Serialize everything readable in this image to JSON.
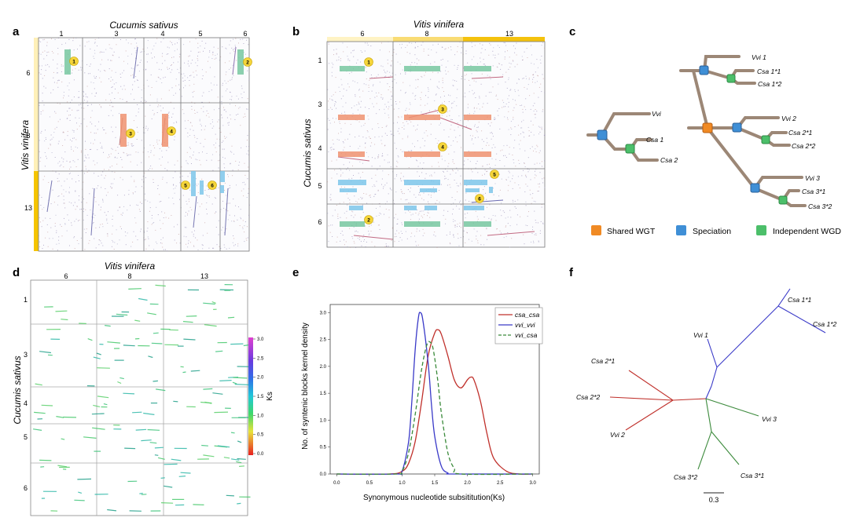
{
  "panels": {
    "a": {
      "letter": "a",
      "x_title": "Cucumis sativus",
      "y_title": "Vitis vinifera",
      "col_labels": [
        "1",
        "3",
        "4",
        "5",
        "6"
      ],
      "row_labels": [
        "6",
        "8",
        "13"
      ],
      "markers": [
        "1",
        "2",
        "3",
        "4",
        "5",
        "6"
      ]
    },
    "b": {
      "letter": "b",
      "x_title": "Vitis vinifera",
      "y_title": "Cucumis sativus",
      "col_labels": [
        "6",
        "8",
        "13"
      ],
      "row_labels": [
        "1",
        "3",
        "4",
        "5",
        "6"
      ],
      "markers": [
        "1",
        "2",
        "3",
        "4",
        "5",
        "6"
      ]
    },
    "c": {
      "letter": "c",
      "small_tree": [
        "Vvi",
        "Csa 1",
        "Csa 2"
      ],
      "big_tree": [
        "Vvi 1",
        "Csa 1*1",
        "Csa 1*2",
        "Vvi 2",
        "Csa 2*1",
        "Csa 2*2",
        "Vvi 3",
        "Csa 3*1",
        "Csa 3*2"
      ],
      "legend": [
        {
          "label": "Shared WGT",
          "color": "#f08a24"
        },
        {
          "label": "Speciation",
          "color": "#3f8fd6"
        },
        {
          "label": "Independent WGD",
          "color": "#4cbf6a"
        }
      ]
    },
    "d": {
      "letter": "d",
      "x_title": "Vitis vinifera",
      "y_title": "Cucumis sativus",
      "col_labels": [
        "6",
        "8",
        "13"
      ],
      "row_labels": [
        "1",
        "3",
        "4",
        "5",
        "6"
      ],
      "colorbar_title": "Ks",
      "colorbar_ticks": [
        "3.0",
        "2.5",
        "2.0",
        "1.5",
        "1.0",
        "0.5",
        "0.0"
      ]
    },
    "e": {
      "letter": "e"
    },
    "f": {
      "letter": "f",
      "labels": [
        "Csa 1*1",
        "Csa 1*2",
        "Vvi 1",
        "Csa 2*1",
        "Csa 2*2",
        "Vvi 2",
        "Vvi 3",
        "Csa 3*2",
        "Csa 3*1"
      ],
      "scale": "0.3"
    }
  },
  "chart_data": {
    "type": "line",
    "title": "",
    "xlabel": "Synonymous nucleotide subsititution(Ks)",
    "ylabel": "No. of syntenic blocks kernel density",
    "xlim": [
      -0.1,
      3.1
    ],
    "ylim": [
      0,
      3.15
    ],
    "x_ticks": [
      "0.0",
      "0.5",
      "1.0",
      "1.5",
      "2.0",
      "2.5",
      "3.0"
    ],
    "y_ticks": [
      "0.0",
      "0.5",
      "1.0",
      "1.5",
      "2.0",
      "2.5",
      "3.0"
    ],
    "legend_position": "top-right",
    "series": [
      {
        "name": "csa_csa",
        "color": "#c0302b",
        "dash": "solid",
        "x": [
          0,
          0.8,
          1.0,
          1.1,
          1.2,
          1.3,
          1.4,
          1.5,
          1.55,
          1.6,
          1.7,
          1.8,
          1.9,
          2.0,
          2.05,
          2.1,
          2.2,
          2.3,
          2.4,
          2.6,
          2.8,
          3.0
        ],
        "y": [
          0,
          0,
          0.05,
          0.2,
          0.6,
          1.35,
          2.2,
          2.62,
          2.68,
          2.6,
          2.2,
          1.75,
          1.6,
          1.75,
          1.8,
          1.75,
          1.35,
          0.75,
          0.3,
          0.05,
          0,
          0
        ]
      },
      {
        "name": "vvi_vvi",
        "color": "#3a3ac8",
        "dash": "solid",
        "x": [
          0,
          0.9,
          1.0,
          1.1,
          1.15,
          1.2,
          1.25,
          1.28,
          1.32,
          1.4,
          1.45,
          1.5,
          1.6,
          1.7,
          1.8,
          3.0
        ],
        "y": [
          0,
          0,
          0.05,
          0.6,
          1.35,
          2.3,
          2.9,
          3.0,
          2.85,
          2.05,
          1.3,
          0.7,
          0.15,
          0.02,
          0,
          0
        ]
      },
      {
        "name": "vvi_csa",
        "color": "#3a8a3a",
        "dash": "dashed",
        "x": [
          0,
          0.9,
          1.0,
          1.1,
          1.2,
          1.3,
          1.38,
          1.43,
          1.48,
          1.55,
          1.6,
          1.7,
          1.8,
          1.9,
          3.0
        ],
        "y": [
          0,
          0,
          0.05,
          0.4,
          1.1,
          1.95,
          2.4,
          2.45,
          2.3,
          1.7,
          1.15,
          0.4,
          0.1,
          0,
          0
        ]
      }
    ]
  }
}
